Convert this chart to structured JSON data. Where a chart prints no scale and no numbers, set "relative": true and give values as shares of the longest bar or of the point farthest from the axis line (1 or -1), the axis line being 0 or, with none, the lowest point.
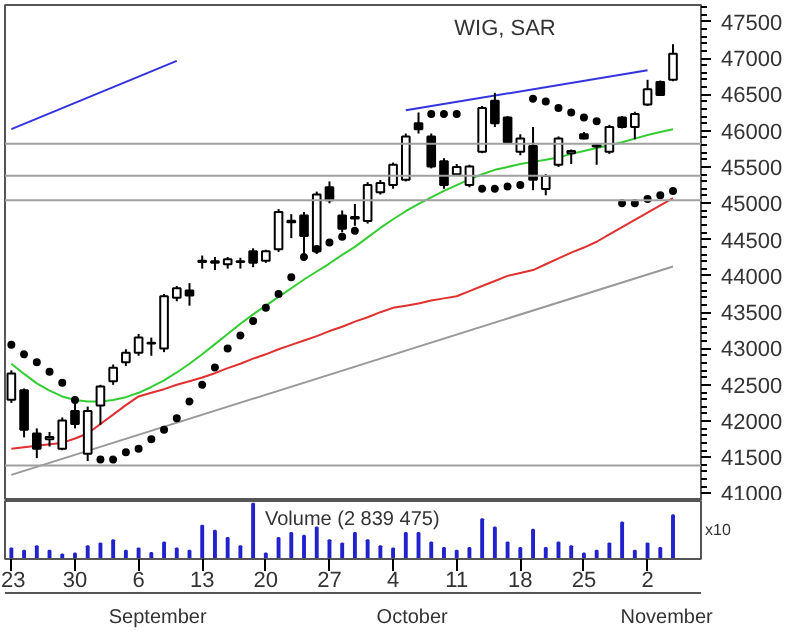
{
  "chart_data": [
    {
      "type": "candlestick",
      "title": "WIG, SAR",
      "categories": [
        "23",
        null,
        null,
        null,
        null,
        "30",
        null,
        null,
        null,
        null,
        "6",
        null,
        null,
        null,
        null,
        "13",
        null,
        null,
        null,
        null,
        "20",
        null,
        null,
        null,
        null,
        "27",
        null,
        null,
        null,
        null,
        "4",
        null,
        null,
        null,
        null,
        "11",
        null,
        null,
        null,
        null,
        "18",
        null,
        null,
        null,
        null,
        "25",
        null,
        null,
        null,
        null,
        "2",
        null,
        null
      ],
      "ohlc": [
        [
          42294,
          42700,
          42250,
          42657
        ],
        [
          42424,
          42450,
          41776,
          41880
        ],
        [
          41828,
          41900,
          41490,
          41620
        ],
        [
          41750,
          41850,
          41650,
          41780
        ],
        [
          41620,
          42050,
          41600,
          42010
        ],
        [
          42140,
          42250,
          41900,
          41960
        ],
        [
          41550,
          42200,
          41450,
          42140
        ],
        [
          42215,
          42500,
          41950,
          42475
        ],
        [
          42550,
          42780,
          42500,
          42735
        ],
        [
          42810,
          42990,
          42760,
          42940
        ],
        [
          42940,
          43200,
          42900,
          43150
        ],
        [
          43070,
          43150,
          42900,
          43080
        ],
        [
          43000,
          43750,
          42950,
          43720
        ],
        [
          43700,
          43860,
          43650,
          43830
        ],
        [
          43800,
          43900,
          43590,
          43730
        ],
        [
          44190,
          44280,
          44100,
          44210
        ],
        [
          44180,
          44260,
          44080,
          44200
        ],
        [
          44160,
          44260,
          44100,
          44230
        ],
        [
          44190,
          44250,
          44100,
          44200
        ],
        [
          44340,
          44380,
          44120,
          44180
        ],
        [
          44210,
          44360,
          44180,
          44340
        ],
        [
          44365,
          44920,
          44330,
          44880
        ],
        [
          44740,
          44850,
          44520,
          44760
        ],
        [
          44830,
          44880,
          44230,
          44550
        ],
        [
          44340,
          45160,
          44300,
          45120
        ],
        [
          45220,
          45300,
          45000,
          45040
        ],
        [
          44830,
          44900,
          44600,
          44650
        ],
        [
          44790,
          44990,
          44690,
          44810
        ],
        [
          44755,
          45290,
          44720,
          45250
        ],
        [
          45150,
          45320,
          45120,
          45280
        ],
        [
          45250,
          45560,
          45200,
          45530
        ],
        [
          45325,
          45960,
          45300,
          45920
        ],
        [
          46100,
          46250,
          45960,
          46020
        ],
        [
          45920,
          45960,
          45480,
          45505
        ],
        [
          45580,
          45620,
          45200,
          45250
        ],
        [
          45400,
          45540,
          45380,
          45500
        ],
        [
          45250,
          45530,
          45220,
          45505
        ],
        [
          45710,
          46340,
          45690,
          46310
        ],
        [
          46410,
          46520,
          46050,
          46100
        ],
        [
          46180,
          46200,
          45820,
          45840
        ],
        [
          45710,
          45950,
          45660,
          45890
        ],
        [
          45790,
          46050,
          45180,
          45325
        ],
        [
          45195,
          45400,
          45110,
          45375
        ],
        [
          45530,
          45920,
          45500,
          45890
        ],
        [
          45690,
          45740,
          45540,
          45720
        ],
        [
          45950,
          45980,
          45880,
          45890
        ],
        [
          45780,
          45820,
          45530,
          45800
        ],
        [
          45710,
          46080,
          45680,
          46050
        ],
        [
          46180,
          46200,
          46030,
          46050
        ],
        [
          46050,
          46260,
          45880,
          46230
        ],
        [
          46360,
          46700,
          46340,
          46570
        ],
        [
          46670,
          46690,
          46480,
          46490
        ],
        [
          46700,
          47190,
          46680,
          47060
        ]
      ],
      "series": [
        {
          "type": "line",
          "color": "#33cc33",
          "values": [
            42790,
            42650,
            42520,
            42420,
            42340,
            42290,
            42270,
            42270,
            42290,
            42330,
            42390,
            42470,
            42560,
            42670,
            42790,
            42920,
            43060,
            43200,
            43340,
            43470,
            43590,
            43710,
            43830,
            43950,
            44060,
            44170,
            44290,
            44400,
            44530,
            44660,
            44780,
            44890,
            44990,
            45080,
            45170,
            45250,
            45330,
            45400,
            45460,
            45500,
            45540,
            45570,
            45600,
            45630,
            45680,
            45720,
            45760,
            45800,
            45840,
            45890,
            45940,
            45980,
            46020
          ]
        },
        {
          "type": "line",
          "color": "#e03030",
          "values": [
            41620,
            41640,
            41660,
            41680,
            41700,
            41760,
            41830,
            41960,
            42090,
            42220,
            42340,
            42390,
            42440,
            42500,
            42550,
            42600,
            42660,
            42730,
            42790,
            42860,
            42920,
            42990,
            43050,
            43110,
            43170,
            43240,
            43300,
            43370,
            43430,
            43500,
            43560,
            43590,
            43620,
            43660,
            43690,
            43720,
            43790,
            43860,
            43930,
            44000,
            44040,
            44080,
            44160,
            44240,
            44320,
            44390,
            44470,
            44570,
            44670,
            44770,
            44870,
            44970,
            45070
          ]
        },
        {
          "type": "line",
          "color": "#999999",
          "values": [
            41260,
            null,
            null,
            null,
            null,
            null,
            null,
            null,
            null,
            null,
            null,
            null,
            null,
            null,
            null,
            null,
            null,
            null,
            null,
            null,
            null,
            null,
            null,
            null,
            null,
            null,
            null,
            null,
            null,
            null,
            null,
            null,
            null,
            null,
            null,
            null,
            null,
            null,
            null,
            null,
            null,
            null,
            null,
            null,
            null,
            null,
            null,
            null,
            null,
            null,
            null,
            null,
            44130
          ]
        },
        {
          "type": "line",
          "color": "#3333dd",
          "values": [
            46020,
            null,
            null,
            null,
            null,
            null,
            null,
            null,
            null,
            null,
            null,
            null,
            null,
            46960,
            null,
            null,
            null,
            null,
            null,
            null,
            null,
            null,
            null,
            null,
            null,
            null,
            null,
            null,
            null,
            null,
            null,
            null,
            null,
            null,
            null,
            null,
            null,
            null,
            null,
            null,
            null,
            null,
            null,
            null,
            null,
            null,
            null,
            null,
            null,
            null,
            null,
            null,
            null
          ]
        },
        {
          "type": "line",
          "color": "#3333dd",
          "values": [
            null,
            null,
            null,
            null,
            null,
            null,
            null,
            null,
            null,
            null,
            null,
            null,
            null,
            null,
            null,
            null,
            null,
            null,
            null,
            null,
            null,
            null,
            null,
            null,
            null,
            null,
            null,
            null,
            null,
            null,
            null,
            46280,
            null,
            null,
            null,
            null,
            null,
            null,
            null,
            null,
            null,
            null,
            null,
            null,
            null,
            null,
            null,
            null,
            null,
            null,
            46830,
            null,
            null
          ]
        },
        {
          "type": "scatter",
          "marker": "circle",
          "color": "#000000",
          "values": [
            43050,
            42920,
            42810,
            42680,
            42530,
            42290,
            null,
            41470,
            41470,
            41570,
            41620,
            41750,
            41880,
            42040,
            42270,
            42500,
            42740,
            43000,
            43180,
            43380,
            43560,
            43750,
            43980,
            44260,
            44370,
            44460,
            44540,
            44620,
            null,
            null,
            null,
            null,
            null,
            46230,
            46230,
            46230,
            null,
            45200,
            45200,
            45230,
            45250,
            46440,
            46400,
            46310,
            46250,
            46180,
            46130,
            null,
            45000,
            45000,
            45060,
            45110,
            45170
          ]
        }
      ],
      "ylim": [
        40900,
        47730
      ],
      "yticks": [
        41000,
        41500,
        42000,
        42500,
        43000,
        43500,
        44000,
        44500,
        45000,
        45500,
        46000,
        46500,
        47000,
        47500
      ],
      "ref_lines": [
        {
          "axis": "y",
          "value": 45820,
          "color": "#a0a0a0"
        },
        {
          "axis": "y",
          "value": 45380,
          "color": "#a0a0a0"
        },
        {
          "axis": "y",
          "value": 45040,
          "color": "#a0a0a0"
        },
        {
          "axis": "y",
          "value": 41390,
          "color": "#a0a0a0"
        }
      ],
      "tick_labels": "y"
    },
    {
      "type": "bar",
      "relative": true,
      "color": "#2222cc",
      "categories": [
        "23",
        null,
        null,
        null,
        null,
        "30",
        null,
        null,
        null,
        null,
        "6",
        null,
        null,
        null,
        null,
        "13",
        null,
        null,
        null,
        null,
        "20",
        null,
        null,
        null,
        null,
        "27",
        null,
        null,
        null,
        null,
        "4",
        null,
        null,
        null,
        null,
        "11",
        null,
        null,
        null,
        null,
        "18",
        null,
        null,
        null,
        null,
        "25",
        null,
        null,
        null,
        null,
        "2",
        null,
        null
      ],
      "values": [
        0.19,
        0.15,
        0.23,
        0.15,
        0.08,
        0.1,
        0.23,
        0.28,
        0.34,
        0.15,
        0.19,
        0.11,
        0.3,
        0.19,
        0.15,
        0.6,
        0.51,
        0.38,
        0.23,
        1,
        0.1,
        0.38,
        0.47,
        0.42,
        0.57,
        0.34,
        0.28,
        0.47,
        0.34,
        0.23,
        0.19,
        0.47,
        0.47,
        0.3,
        0.2,
        0.15,
        0.2,
        0.72,
        0.57,
        0.3,
        0.2,
        0.53,
        0.2,
        0.3,
        0.23,
        0.1,
        0.15,
        0.28,
        0.66,
        0.15,
        0.28,
        0.2,
        0.79
      ],
      "annotations": [
        "Volume (2 839 475)",
        "x10",
        "September",
        "October",
        "November"
      ],
      "tick_labels": "x"
    }
  ]
}
